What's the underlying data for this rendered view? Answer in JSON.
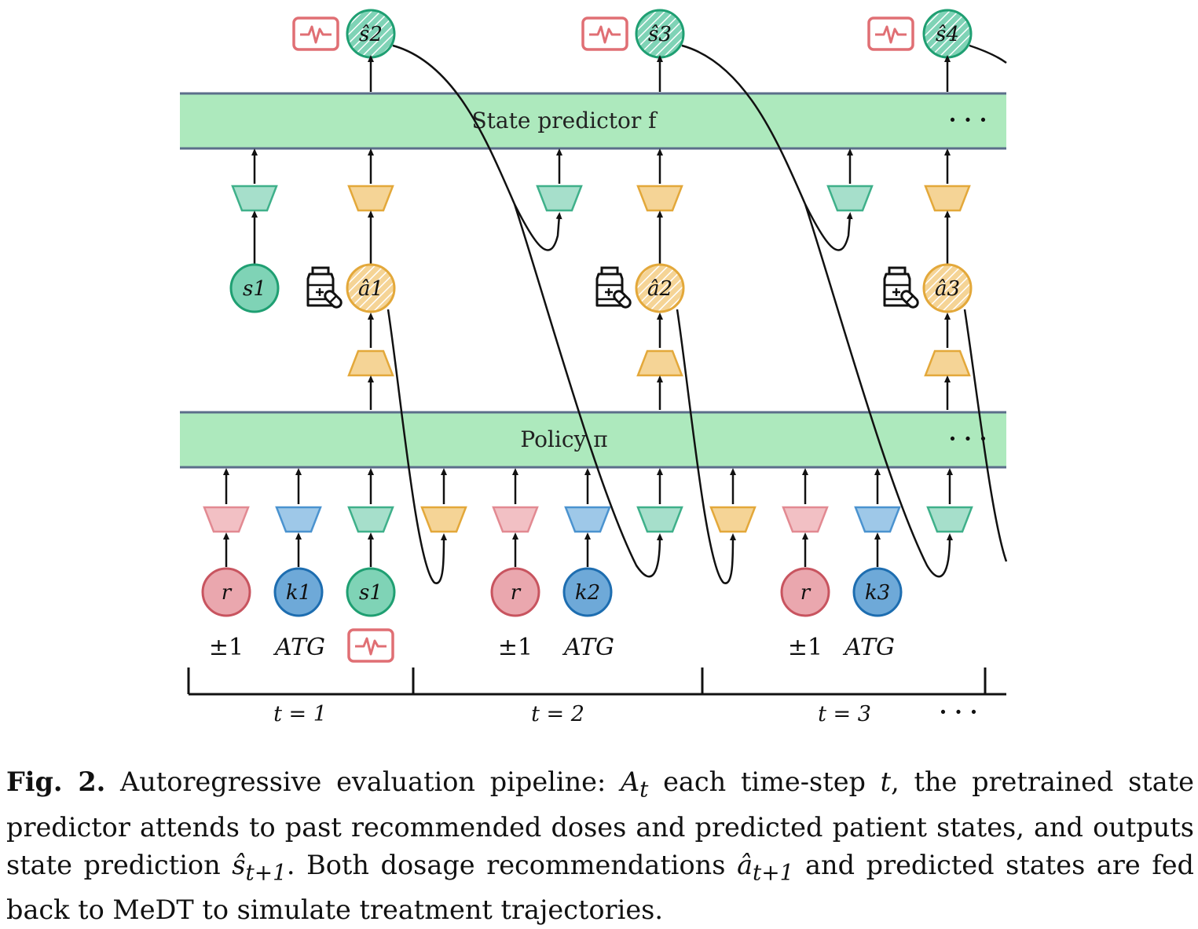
{
  "diagram": {
    "bands": {
      "state_predictor": "State predictor f",
      "policy": "Policy π",
      "ellipsis": "· · ·"
    },
    "predicted_states": [
      "ŝ2",
      "ŝ3",
      "ŝ4"
    ],
    "state_nodes_top": [
      "s1"
    ],
    "action_nodes": [
      "â1",
      "â2",
      "â3"
    ],
    "input_nodes": [
      {
        "reward": "r",
        "knowledge": "k1",
        "state": "s1"
      },
      {
        "reward": "r",
        "knowledge": "k2"
      },
      {
        "reward": "r",
        "knowledge": "k3"
      }
    ],
    "input_labels": {
      "reward": "±1",
      "knowledge": "ATG"
    },
    "timesteps": [
      "t = 1",
      "t = 2",
      "t = 3"
    ],
    "timestep_ellipsis": "· · ·",
    "icons": [
      "vital-signs-icon",
      "medication-icon"
    ],
    "colors": {
      "band_fill": "#ade9bd",
      "band_border": "#5b6e8a",
      "state_green": "#7fd3b6",
      "state_green_stroke": "#1f9f72",
      "action_orange": "#f5d496",
      "action_orange_stroke": "#e3a83a",
      "reward_pink": "#eaa7ae",
      "reward_pink_stroke": "#c8545f",
      "knowledge_blue": "#6ea9d8",
      "knowledge_blue_stroke": "#1d6db0",
      "monitor_red": "#e06f74"
    }
  },
  "caption": {
    "label": "Fig. 2.",
    "text_part1": "Autoregressive evaluation pipeline: ",
    "var_At": "A",
    "var_At_sub": "t",
    "text_part2": " each time-step ",
    "var_t": "t",
    "text_part3": ", the pretrained state predictor attends to past recommended doses and predicted patient states, and outputs state prediction ",
    "var_s": "ŝ",
    "var_s_sub": "t+1",
    "text_part4": ". Both dosage recommendations ",
    "var_a": "â",
    "var_a_sub": "t+1",
    "text_part5": " and predicted states are fed back to MeDT to simulate treatment trajectories."
  }
}
